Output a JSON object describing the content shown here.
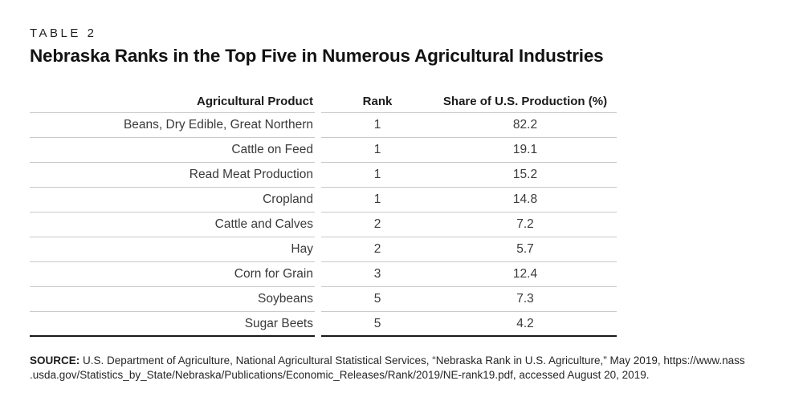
{
  "table_label": "TABLE 2",
  "title": "Nebraska Ranks in the Top Five in Numerous Agricultural Industries",
  "table": {
    "columns": [
      "Agricultural Product",
      "Rank",
      "Share of U.S. Production (%)"
    ],
    "rows": [
      {
        "product": "Beans, Dry Edible, Great Northern",
        "rank": "1",
        "share": "82.2"
      },
      {
        "product": "Cattle on Feed",
        "rank": "1",
        "share": "19.1"
      },
      {
        "product": "Read Meat Production",
        "rank": "1",
        "share": "15.2"
      },
      {
        "product": "Cropland",
        "rank": "1",
        "share": "14.8"
      },
      {
        "product": "Cattle and Calves",
        "rank": "2",
        "share": "7.2"
      },
      {
        "product": "Hay",
        "rank": "2",
        "share": "5.7"
      },
      {
        "product": "Corn for Grain",
        "rank": "3",
        "share": "12.4"
      },
      {
        "product": "Soybeans",
        "rank": "5",
        "share": "7.3"
      },
      {
        "product": "Sugar Beets",
        "rank": "5",
        "share": "4.2"
      }
    ]
  },
  "chart_data": {
    "type": "table",
    "title": "Nebraska Ranks in the Top Five in Numerous Agricultural Industries",
    "categories": [
      "Beans, Dry Edible, Great Northern",
      "Cattle on Feed",
      "Read Meat Production",
      "Cropland",
      "Cattle and Calves",
      "Hay",
      "Corn for Grain",
      "Soybeans",
      "Sugar Beets"
    ],
    "series": [
      {
        "name": "Rank",
        "values": [
          1,
          1,
          1,
          1,
          2,
          2,
          3,
          5,
          5
        ]
      },
      {
        "name": "Share of U.S. Production (%)",
        "values": [
          82.2,
          19.1,
          15.2,
          14.8,
          7.2,
          5.7,
          12.4,
          7.3,
          4.2
        ]
      }
    ]
  },
  "source": {
    "label": "SOURCE:",
    "line1": "U.S. Department of Agriculture, National Agricultural Statistical Services, “Nebraska Rank in U.S. Agriculture,” May 2019, https://www.nass",
    "line2": ".usda.gov/Statistics_by_State/Nebraska/Publications/Economic_Releases/Rank/2019/NE-rank19.pdf, accessed August 20, 2019."
  },
  "colors": {
    "background": "#ffffff",
    "text_primary": "#121212",
    "text_body": "#3a3a3a",
    "row_divider": "#c9c9c9",
    "table_bottom_border": "#191919"
  }
}
